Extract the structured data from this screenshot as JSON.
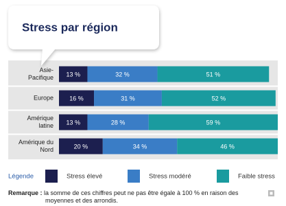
{
  "chart_data": {
    "type": "stacked-bar-horizontal",
    "title": "Stress par région",
    "categories": [
      "Asie-\nPacifique",
      "Europe",
      "Amérique\nlatine",
      "Amérique du\nNord"
    ],
    "series": [
      {
        "name": "Stress élevé",
        "color": "#1c1f4f",
        "values": [
          13,
          16,
          13,
          20
        ],
        "value_labels": [
          "13 %",
          "16 %",
          "13 %",
          "20 %"
        ]
      },
      {
        "name": "Stress modéré",
        "color": "#3a7dc6",
        "values": [
          32,
          31,
          28,
          34
        ],
        "value_labels": [
          "32 %",
          "31 %",
          "28 %",
          "34 %"
        ]
      },
      {
        "name": "Faible stress",
        "color": "#1a9b9f",
        "values": [
          51,
          52,
          59,
          46
        ],
        "value_labels": [
          "51 %",
          "52 %",
          "59 %",
          "46 %"
        ]
      }
    ],
    "legend_title": "Légende",
    "note_label": "Remarque :",
    "note": "la somme de ces chiffres peut ne pas être égale à 100 % en raison des moyennes et des arrondis."
  }
}
